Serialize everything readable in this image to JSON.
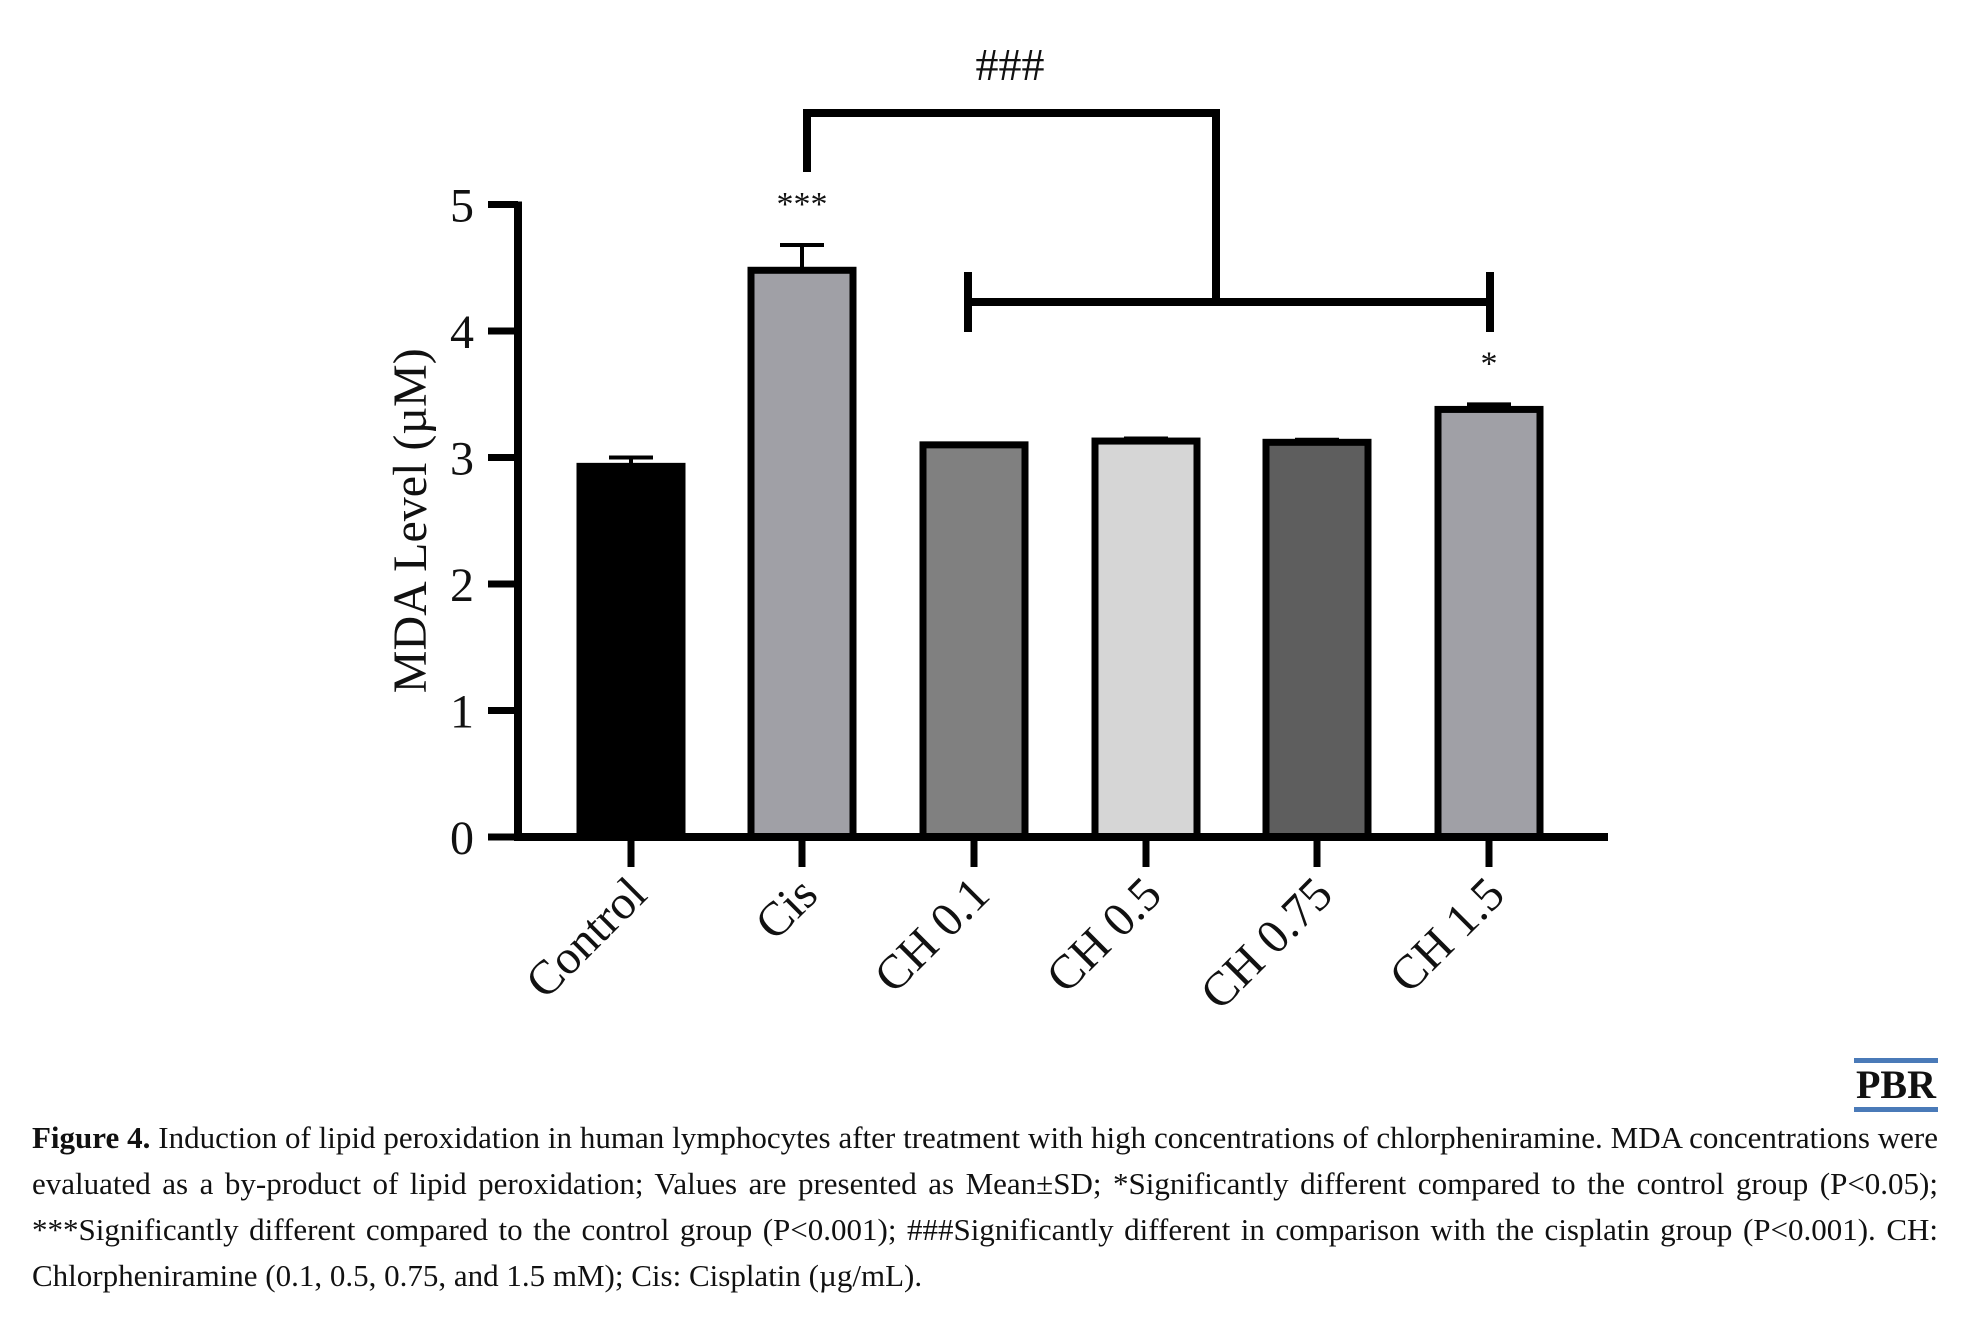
{
  "chart_data": {
    "type": "bar",
    "categories": [
      "Control",
      "Cis",
      "CH 0.1",
      "CH 0.5",
      "CH 0.75",
      "CH 1.5"
    ],
    "values": [
      2.93,
      4.48,
      3.1,
      3.13,
      3.12,
      3.38
    ],
    "errors": [
      0.07,
      0.2,
      0.01,
      0.02,
      0.02,
      0.04
    ],
    "bar_colors": [
      "#000000",
      "#a0a0a6",
      "#808080",
      "#d6d6d6",
      "#5e5e5e",
      "#a0a0a6"
    ],
    "ylabel": "MDA Level (µM)",
    "ylim": [
      0,
      5
    ],
    "yticks": [
      "0",
      "1",
      "2",
      "3",
      "4",
      "5"
    ],
    "annotations": [
      {
        "category": "Cis",
        "text": "***"
      },
      {
        "category": "CH 1.5",
        "text": "*"
      }
    ],
    "bracket": {
      "from": "Cis",
      "to": [
        "CH 0.1",
        "CH 1.5"
      ],
      "text": "###"
    },
    "grid": false
  },
  "logo": "PBR",
  "caption": {
    "label": "Figure 4.",
    "text": " Induction of lipid peroxidation in human lymphocytes after treatment with high concentrations of chlorpheniramine. MDA concentrations were evaluated as a by-product of lipid peroxidation; Values are presented as Mean±SD; *Significantly different compared to the control group (P<0.05); ***Significantly different compared to the control group (P<0.001); ###Significantly different in comparison with the cisplatin group (P<0.001). CH: Chlorpheniramine (0.1, 0.5, 0.75, and 1.5 mM); Cis: Cisplatin (µg/mL)."
  }
}
